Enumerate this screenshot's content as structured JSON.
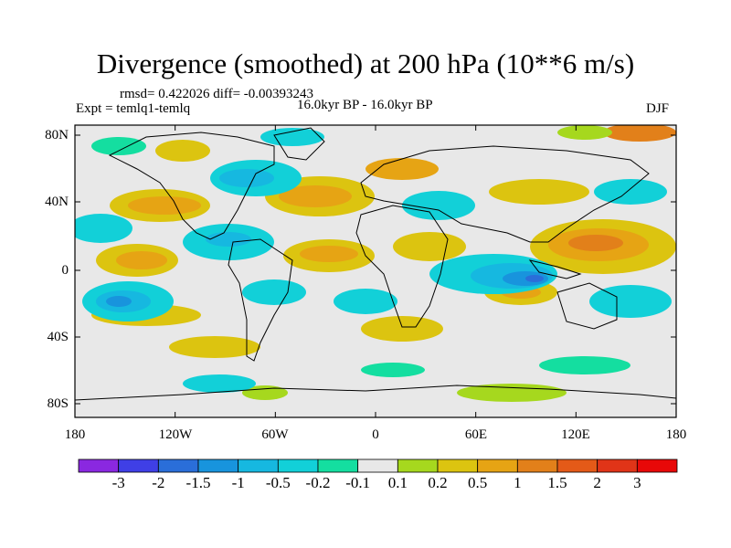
{
  "title": "Divergence (smoothed) at 200 hPa (10**6 m/s)",
  "stats": "rmsd= 0.422026 diff= -0.00393243",
  "experiment": "Expt = temlq1-temlq",
  "period": "16.0kyr BP - 16.0kyr BP",
  "season": "DJF",
  "map": {
    "projection": "cylindrical equidistant",
    "lon_range": [
      -180,
      180
    ],
    "lat_range": [
      -90,
      90
    ],
    "y_ticks": [
      "80N",
      "40N",
      "0",
      "40S",
      "80S"
    ],
    "x_ticks": [
      "180",
      "120W",
      "60W",
      "0",
      "60E",
      "120E",
      "180"
    ],
    "base_color": "#e8e8e8"
  },
  "colorbar": {
    "labels": [
      "-3",
      "-2",
      "-1.5",
      "-1",
      "-0.5",
      "-0.2",
      "-0.1",
      "0.1",
      "0.2",
      "0.5",
      "1",
      "1.5",
      "2",
      "3"
    ],
    "colors": [
      "#8a28e0",
      "#3f3fe6",
      "#2a6ed9",
      "#1894dd",
      "#16b8e0",
      "#12d0d8",
      "#14dea0",
      "#e8e8e8",
      "#a6d81e",
      "#dcc410",
      "#e6a414",
      "#e2801a",
      "#e45a18",
      "#e03418",
      "#e80808"
    ]
  }
}
